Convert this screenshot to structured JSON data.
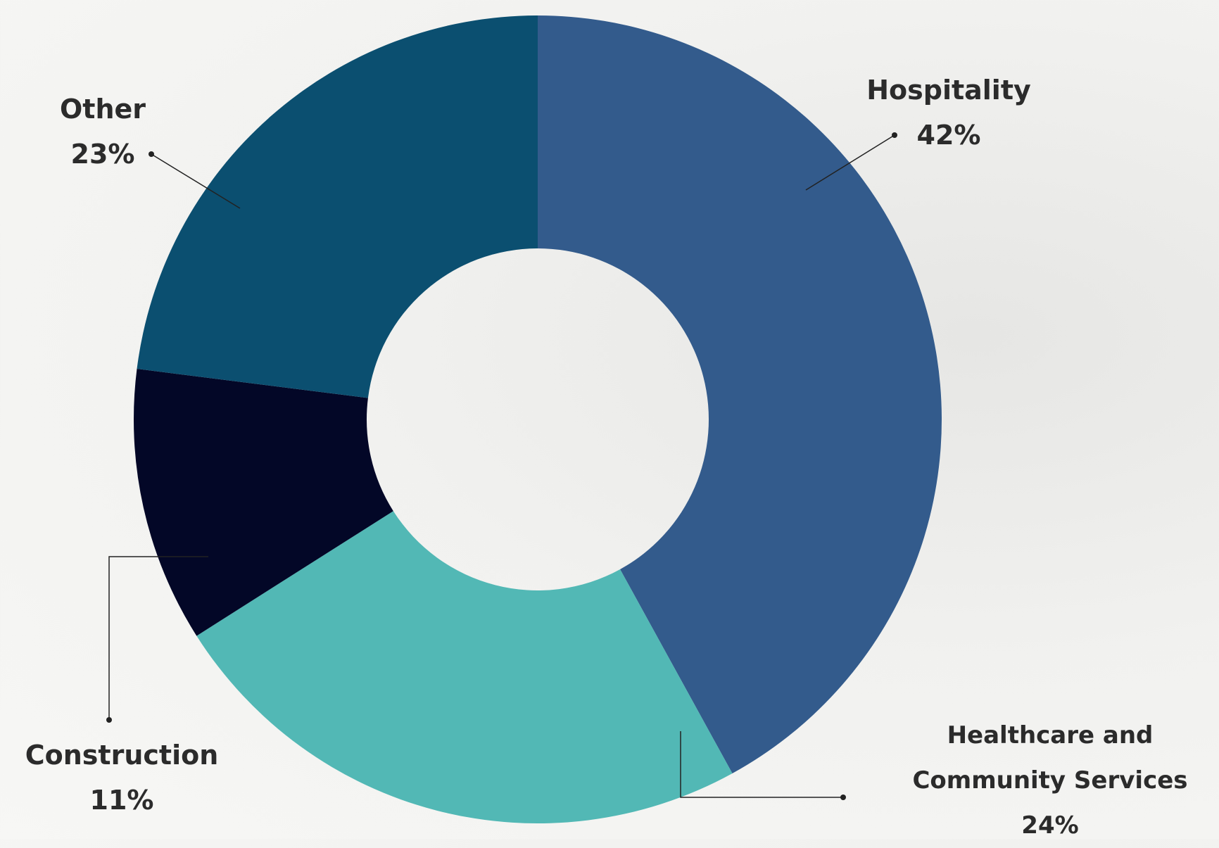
{
  "chart_data": {
    "type": "donut",
    "categories": [
      "Hospitality",
      "Healthcare and Community Services",
      "Construction",
      "Other"
    ],
    "values": [
      42,
      24,
      11,
      23
    ],
    "value_labels": [
      "42%",
      "24%",
      "11%",
      "23%"
    ],
    "colors": [
      "#335b8c",
      "#52b8b5",
      "#030727",
      "#0b4f70"
    ]
  }
}
